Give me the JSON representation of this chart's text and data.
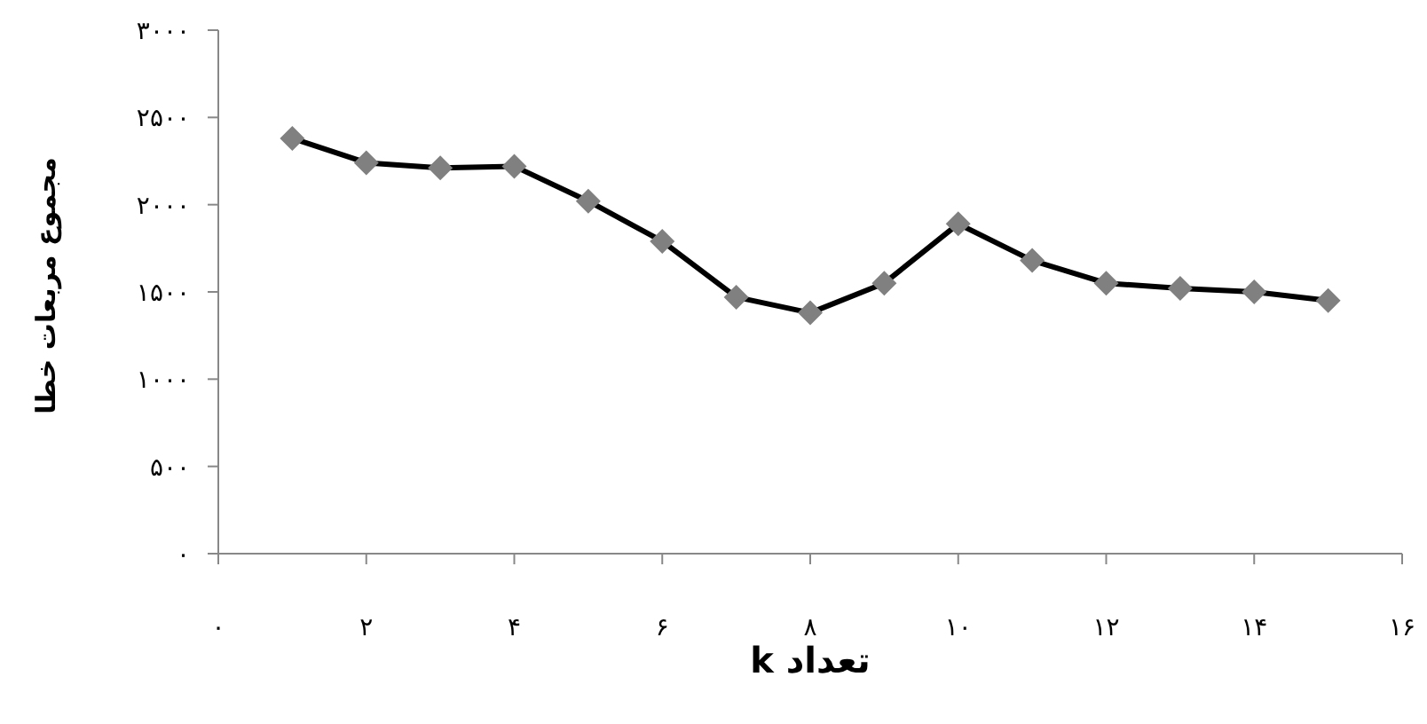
{
  "chart_data": {
    "type": "line",
    "xlabel": "تعداد k",
    "ylabel": "مجموع مربعات خطا",
    "x": [
      1,
      2,
      3,
      4,
      5,
      6,
      7,
      8,
      9,
      10,
      11,
      12,
      13,
      14,
      15
    ],
    "series": [
      {
        "color": "#000000",
        "values": [
          2380,
          2240,
          2210,
          2220,
          2020,
          1790,
          1470,
          1380,
          1550,
          1890,
          1680,
          1550,
          1520,
          1500,
          1450
        ]
      }
    ],
    "marker": "diamond",
    "line_style": "solid",
    "grid": false,
    "legend": false,
    "xlim": [
      0,
      16
    ],
    "xticks": [
      {
        "value": 0,
        "label": "۰"
      },
      {
        "value": 2,
        "label": "۲"
      },
      {
        "value": 4,
        "label": "۴"
      },
      {
        "value": 6,
        "label": "۶"
      },
      {
        "value": 8,
        "label": "۸"
      },
      {
        "value": 10,
        "label": "۱۰"
      },
      {
        "value": 12,
        "label": "۱۲"
      },
      {
        "value": 14,
        "label": "۱۴"
      },
      {
        "value": 16,
        "label": "۱۶"
      }
    ],
    "ylim": [
      0,
      3000
    ],
    "yticks": [
      {
        "value": 0,
        "label": "۰"
      },
      {
        "value": 500,
        "label": "۵۰۰"
      },
      {
        "value": 1000,
        "label": "۱۰۰۰"
      },
      {
        "value": 1500,
        "label": "۱۵۰۰"
      },
      {
        "value": 2000,
        "label": "۲۰۰۰"
      },
      {
        "value": 2500,
        "label": "۲۵۰۰"
      },
      {
        "value": 3000,
        "label": "۳۰۰۰"
      }
    ]
  }
}
